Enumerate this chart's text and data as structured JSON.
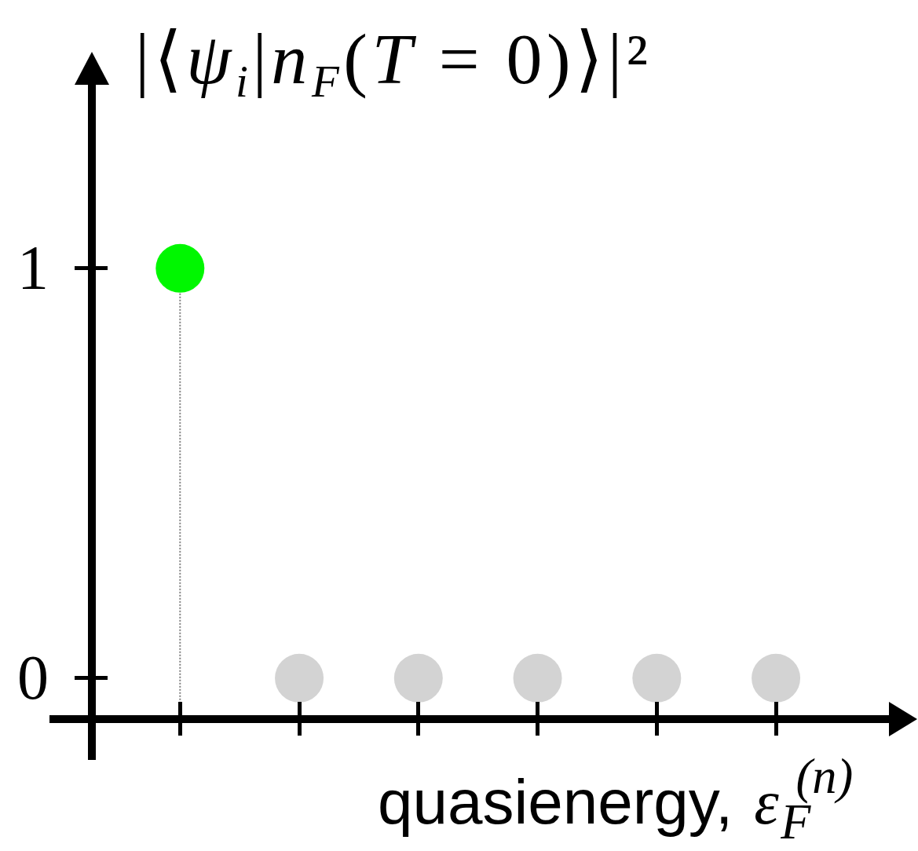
{
  "chart_data": {
    "type": "lollipop",
    "ylabel": "|⟨ψ$_{i}$|n$_{F}$(T = 0)⟩|²",
    "xlabel": "quasienergy, ε$_{F}$$^{(n)}$",
    "categories": [
      null,
      null,
      null,
      null,
      null,
      null
    ],
    "values": [
      1,
      0,
      0,
      0,
      0,
      0
    ],
    "colors": [
      "#00f700",
      "#d3d3d3",
      "#d3d3d3",
      "#d3d3d3",
      "#d3d3d3",
      "#d3d3d3"
    ],
    "ylim": [
      -0.1,
      1.45
    ],
    "yticks": [
      0,
      1
    ],
    "tick_labels": "y",
    "marker": "circle",
    "line_style": "dotted"
  }
}
